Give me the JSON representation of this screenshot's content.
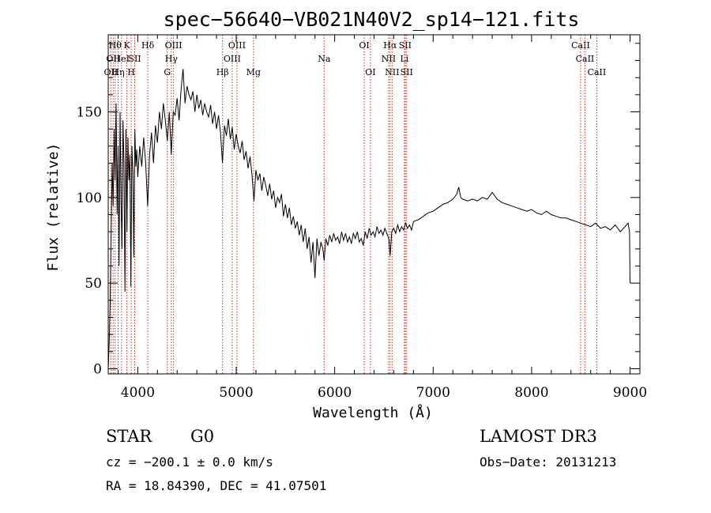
{
  "chart_data": {
    "type": "line",
    "title": "spec−56640−VB021N40V2_sp14−121.fits",
    "xlabel": "Wavelength (Å)",
    "ylabel": "Flux (relative)",
    "xlim": [
      3700,
      9100
    ],
    "ylim": [
      -3,
      195
    ],
    "x_ticks": [
      {
        "value": 4000,
        "label": "4000"
      },
      {
        "value": 5000,
        "label": "5000"
      },
      {
        "value": 6000,
        "label": "6000"
      },
      {
        "value": 7000,
        "label": "7000"
      },
      {
        "value": 8000,
        "label": "8000"
      },
      {
        "value": 9000,
        "label": "9000"
      }
    ],
    "y_ticks": [
      {
        "value": 0,
        "label": "0"
      },
      {
        "value": 50,
        "label": "50"
      },
      {
        "value": 100,
        "label": "100"
      },
      {
        "value": 150,
        "label": "150"
      }
    ],
    "series": [
      {
        "name": "spectrum",
        "points": [
          [
            3700,
            0
          ],
          [
            3710,
            15
          ],
          [
            3720,
            40
          ],
          [
            3730,
            80
          ],
          [
            3740,
            120
          ],
          [
            3750,
            95
          ],
          [
            3760,
            140
          ],
          [
            3770,
            110
          ],
          [
            3780,
            155
          ],
          [
            3790,
            90
          ],
          [
            3800,
            130
          ],
          [
            3810,
            60
          ],
          [
            3820,
            150
          ],
          [
            3830,
            100
          ],
          [
            3840,
            70
          ],
          [
            3850,
            145
          ],
          [
            3860,
            120
          ],
          [
            3870,
            45
          ],
          [
            3880,
            140
          ],
          [
            3890,
            80
          ],
          [
            3900,
            135
          ],
          [
            3910,
            110
          ],
          [
            3920,
            125
          ],
          [
            3930,
            48
          ],
          [
            3940,
            130
          ],
          [
            3950,
            115
          ],
          [
            3960,
            65
          ],
          [
            3970,
            140
          ],
          [
            3980,
            118
          ],
          [
            3990,
            128
          ],
          [
            4000,
            112
          ],
          [
            4020,
            130
          ],
          [
            4040,
            118
          ],
          [
            4060,
            135
          ],
          [
            4080,
            120
          ],
          [
            4100,
            95
          ],
          [
            4120,
            125
          ],
          [
            4140,
            138
          ],
          [
            4160,
            120
          ],
          [
            4180,
            142
          ],
          [
            4200,
            132
          ],
          [
            4220,
            150
          ],
          [
            4240,
            140
          ],
          [
            4260,
            155
          ],
          [
            4280,
            145
          ],
          [
            4300,
            133
          ],
          [
            4320,
            150
          ],
          [
            4340,
            125
          ],
          [
            4360,
            150
          ],
          [
            4380,
            148
          ],
          [
            4400,
            158
          ],
          [
            4420,
            145
          ],
          [
            4440,
            163
          ],
          [
            4460,
            175
          ],
          [
            4480,
            155
          ],
          [
            4500,
            165
          ],
          [
            4520,
            160
          ],
          [
            4540,
            157
          ],
          [
            4560,
            162
          ],
          [
            4580,
            150
          ],
          [
            4600,
            160
          ],
          [
            4620,
            152
          ],
          [
            4640,
            157
          ],
          [
            4660,
            148
          ],
          [
            4680,
            155
          ],
          [
            4700,
            150
          ],
          [
            4720,
            147
          ],
          [
            4740,
            154
          ],
          [
            4760,
            143
          ],
          [
            4780,
            150
          ],
          [
            4800,
            140
          ],
          [
            4820,
            148
          ],
          [
            4840,
            138
          ],
          [
            4860,
            120
          ],
          [
            4880,
            142
          ],
          [
            4900,
            136
          ],
          [
            4920,
            146
          ],
          [
            4940,
            134
          ],
          [
            4960,
            141
          ],
          [
            4980,
            128
          ],
          [
            5000,
            137
          ],
          [
            5020,
            130
          ],
          [
            5040,
            126
          ],
          [
            5060,
            133
          ],
          [
            5080,
            122
          ],
          [
            5100,
            127
          ],
          [
            5120,
            117
          ],
          [
            5140,
            124
          ],
          [
            5160,
            113
          ],
          [
            5180,
            98
          ],
          [
            5200,
            116
          ],
          [
            5220,
            110
          ],
          [
            5240,
            114
          ],
          [
            5260,
            104
          ],
          [
            5280,
            112
          ],
          [
            5300,
            107
          ],
          [
            5320,
            101
          ],
          [
            5340,
            108
          ],
          [
            5360,
            99
          ],
          [
            5380,
            104
          ],
          [
            5400,
            94
          ],
          [
            5420,
            100
          ],
          [
            5440,
            97
          ],
          [
            5460,
            102
          ],
          [
            5480,
            89
          ],
          [
            5500,
            96
          ],
          [
            5520,
            88
          ],
          [
            5540,
            94
          ],
          [
            5560,
            84
          ],
          [
            5580,
            89
          ],
          [
            5600,
            82
          ],
          [
            5620,
            86
          ],
          [
            5640,
            78
          ],
          [
            5660,
            84
          ],
          [
            5680,
            74
          ],
          [
            5700,
            82
          ],
          [
            5720,
            70
          ],
          [
            5740,
            77
          ],
          [
            5760,
            62
          ],
          [
            5780,
            74
          ],
          [
            5800,
            53
          ],
          [
            5820,
            76
          ],
          [
            5840,
            66
          ],
          [
            5860,
            74
          ],
          [
            5880,
            70
          ],
          [
            5893,
            63
          ],
          [
            5910,
            76
          ],
          [
            5930,
            72
          ],
          [
            5950,
            78
          ],
          [
            5970,
            74
          ],
          [
            5990,
            79
          ],
          [
            6010,
            75
          ],
          [
            6030,
            77
          ],
          [
            6050,
            73
          ],
          [
            6070,
            80
          ],
          [
            6090,
            75
          ],
          [
            6110,
            79
          ],
          [
            6130,
            74
          ],
          [
            6150,
            77
          ],
          [
            6170,
            73
          ],
          [
            6190,
            79
          ],
          [
            6210,
            76
          ],
          [
            6230,
            80
          ],
          [
            6250,
            74
          ],
          [
            6270,
            76
          ],
          [
            6290,
            72
          ],
          [
            6310,
            80
          ],
          [
            6330,
            76
          ],
          [
            6350,
            82
          ],
          [
            6370,
            78
          ],
          [
            6390,
            80
          ],
          [
            6410,
            77
          ],
          [
            6430,
            83
          ],
          [
            6450,
            79
          ],
          [
            6470,
            81
          ],
          [
            6490,
            78
          ],
          [
            6510,
            82
          ],
          [
            6530,
            79
          ],
          [
            6550,
            76
          ],
          [
            6563,
            66
          ],
          [
            6580,
            80
          ],
          [
            6600,
            82
          ],
          [
            6620,
            79
          ],
          [
            6640,
            84
          ],
          [
            6660,
            80
          ],
          [
            6680,
            83
          ],
          [
            6700,
            81
          ],
          [
            6720,
            85
          ],
          [
            6740,
            82
          ],
          [
            6760,
            84
          ],
          [
            6780,
            81
          ],
          [
            6800,
            86
          ],
          [
            6850,
            87
          ],
          [
            6900,
            89
          ],
          [
            6950,
            91
          ],
          [
            7000,
            92
          ],
          [
            7050,
            94
          ],
          [
            7100,
            96
          ],
          [
            7150,
            97
          ],
          [
            7200,
            99
          ],
          [
            7240,
            102
          ],
          [
            7260,
            106
          ],
          [
            7280,
            100
          ],
          [
            7300,
            99
          ],
          [
            7350,
            98
          ],
          [
            7400,
            99
          ],
          [
            7450,
            98
          ],
          [
            7500,
            100
          ],
          [
            7550,
            99
          ],
          [
            7600,
            103
          ],
          [
            7650,
            99
          ],
          [
            7700,
            97
          ],
          [
            7750,
            96
          ],
          [
            7800,
            95
          ],
          [
            7850,
            94
          ],
          [
            7900,
            93
          ],
          [
            7950,
            92
          ],
          [
            8000,
            93
          ],
          [
            8050,
            91
          ],
          [
            8100,
            90
          ],
          [
            8150,
            92
          ],
          [
            8200,
            90
          ],
          [
            8250,
            89
          ],
          [
            8300,
            88
          ],
          [
            8350,
            88
          ],
          [
            8400,
            87
          ],
          [
            8450,
            86
          ],
          [
            8500,
            85
          ],
          [
            8550,
            84
          ],
          [
            8600,
            83
          ],
          [
            8650,
            85
          ],
          [
            8700,
            82
          ],
          [
            8750,
            83
          ],
          [
            8800,
            81
          ],
          [
            8850,
            84
          ],
          [
            8900,
            80
          ],
          [
            8950,
            83
          ],
          [
            8980,
            85
          ],
          [
            8995,
            80
          ],
          [
            9000,
            50
          ]
        ]
      }
    ],
    "line_markers": [
      {
        "wavelength": 3727,
        "label": "OII",
        "row": 2
      },
      {
        "wavelength": 3750,
        "label": "OII",
        "row": 1
      },
      {
        "wavelength": 3770,
        "label": "Hθ",
        "row": 0
      },
      {
        "wavelength": 3800,
        "label": "Hη",
        "row": 2
      },
      {
        "wavelength": 3835,
        "label": "HeI",
        "row": 1
      },
      {
        "wavelength": 3889,
        "label": "K",
        "row": 0
      },
      {
        "wavelength": 3933,
        "label": "H",
        "row": 2
      },
      {
        "wavelength": 3969,
        "label": "SII",
        "row": 1
      },
      {
        "wavelength": 4102,
        "label": "Hδ",
        "row": 0
      },
      {
        "wavelength": 4300,
        "label": "G",
        "row": 2
      },
      {
        "wavelength": 4341,
        "label": "Hγ",
        "row": 1
      },
      {
        "wavelength": 4363,
        "label": "OIII",
        "row": 0
      },
      {
        "wavelength": 4861,
        "label": "Hβ",
        "row": 2
      },
      {
        "wavelength": 4959,
        "label": "OIII",
        "row": 1
      },
      {
        "wavelength": 5007,
        "label": "OIII",
        "row": 0
      },
      {
        "wavelength": 5175,
        "label": "Mg",
        "row": 2
      },
      {
        "wavelength": 5893,
        "label": "Na",
        "row": 1
      },
      {
        "wavelength": 6300,
        "label": "OI",
        "row": 0
      },
      {
        "wavelength": 6363,
        "label": "OI",
        "row": 2
      },
      {
        "wavelength": 6548,
        "label": "NII",
        "row": 1
      },
      {
        "wavelength": 6563,
        "label": "Hα",
        "row": 0
      },
      {
        "wavelength": 6583,
        "label": "NII",
        "row": 2
      },
      {
        "wavelength": 6708,
        "label": "Li",
        "row": 1
      },
      {
        "wavelength": 6716,
        "label": "SII",
        "row": 0
      },
      {
        "wavelength": 6731,
        "label": "SII",
        "row": 2
      },
      {
        "wavelength": 8498,
        "label": "CaII",
        "row": 0
      },
      {
        "wavelength": 8542,
        "label": "CaII",
        "row": 1
      },
      {
        "wavelength": 8662,
        "label": "CaII",
        "row": 2
      }
    ]
  },
  "info": {
    "object_class": "STAR",
    "subclass": "G0",
    "survey": "LAMOST DR3",
    "cz": "cz = −200.1 ± 0.0 km/s",
    "obs_date": "Obs−Date: 20131213",
    "coords": "RA =  18.84390, DEC =  41.07501"
  },
  "colors": {
    "spectrum": "#000000",
    "line_marker": "#cc2b1d",
    "axis": "#000000"
  }
}
